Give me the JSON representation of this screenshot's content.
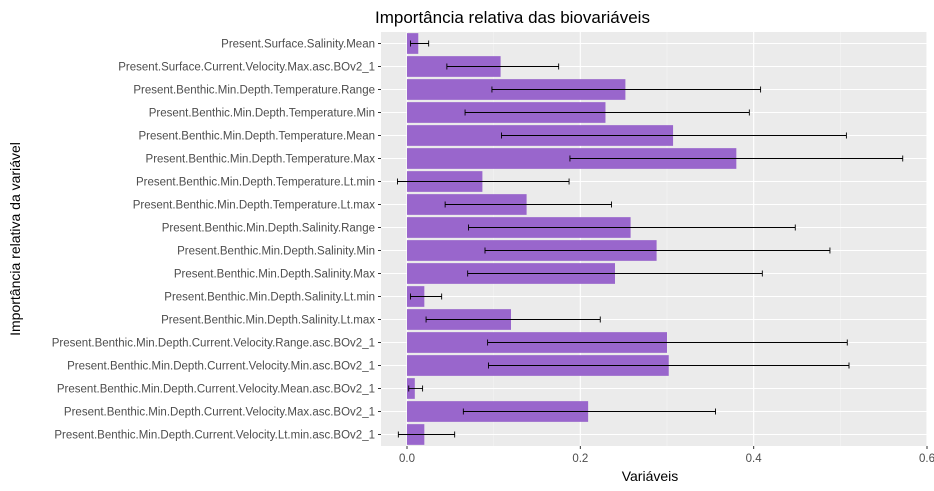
{
  "chart_data": {
    "type": "bar",
    "orientation": "horizontal",
    "title": "Importância relativa das biovariáveis",
    "xlabel": "Variáveis",
    "ylabel": "Importância relativa da variável",
    "xlim": [
      -0.03,
      0.6
    ],
    "xticks": [
      0.0,
      0.2,
      0.4,
      0.6
    ],
    "xtick_labels": [
      "0.0",
      "0.2",
      "0.4",
      "0.6"
    ],
    "grid": true,
    "bar_color": "#9966CC",
    "panel_color": "#EBEBEB",
    "categories": [
      "Present.Surface.Salinity.Mean",
      "Present.Surface.Current.Velocity.Max.asc.BOv2_1",
      "Present.Benthic.Min.Depth.Temperature.Range",
      "Present.Benthic.Min.Depth.Temperature.Min",
      "Present.Benthic.Min.Depth.Temperature.Mean",
      "Present.Benthic.Min.Depth.Temperature.Max",
      "Present.Benthic.Min.Depth.Temperature.Lt.min",
      "Present.Benthic.Min.Depth.Temperature.Lt.max",
      "Present.Benthic.Min.Depth.Salinity.Range",
      "Present.Benthic.Min.Depth.Salinity.Min",
      "Present.Benthic.Min.Depth.Salinity.Max",
      "Present.Benthic.Min.Depth.Salinity.Lt.min",
      "Present.Benthic.Min.Depth.Salinity.Lt.max",
      "Present.Benthic.Min.Depth.Current.Velocity.Range.asc.BOv2_1",
      "Present.Benthic.Min.Depth.Current.Velocity.Min.asc.BOv2_1",
      "Present.Benthic.Min.Depth.Current.Velocity.Mean.asc.BOv2_1",
      "Present.Benthic.Min.Depth.Current.Velocity.Max.asc.BOv2_1",
      "Present.Benthic.Min.Depth.Current.Velocity.Lt.min.asc.BOv2_1"
    ],
    "values": [
      0.013,
      0.108,
      0.252,
      0.229,
      0.307,
      0.38,
      0.087,
      0.138,
      0.258,
      0.288,
      0.24,
      0.02,
      0.12,
      0.3,
      0.302,
      0.009,
      0.209,
      0.02
    ],
    "error_low": [
      0.004,
      0.046,
      0.098,
      0.067,
      0.109,
      0.188,
      -0.011,
      0.044,
      0.071,
      0.09,
      0.07,
      0.004,
      0.022,
      0.093,
      0.094,
      0.002,
      0.065,
      -0.01
    ],
    "error_high": [
      0.025,
      0.175,
      0.408,
      0.395,
      0.507,
      0.572,
      0.187,
      0.236,
      0.448,
      0.488,
      0.41,
      0.04,
      0.223,
      0.508,
      0.51,
      0.018,
      0.356,
      0.055
    ]
  }
}
